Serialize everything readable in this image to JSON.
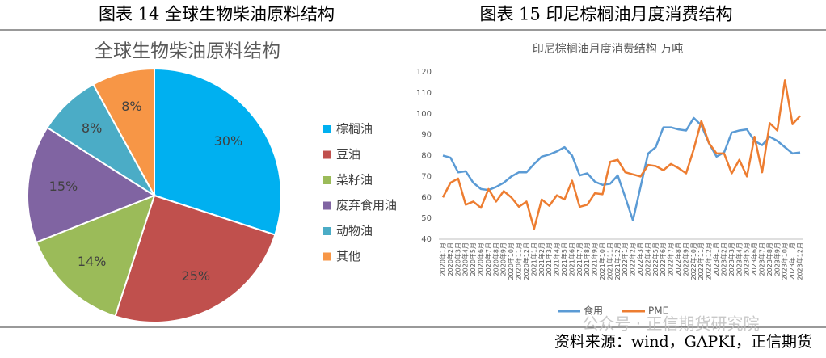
{
  "chart_data": [
    {
      "type": "pie",
      "caption": "图表 14  全球生物柴油原料结构",
      "title": "全球生物柴油原料结构",
      "categories": [
        "棕榈油",
        "豆油",
        "菜籽油",
        "废弃食用油",
        "动物油",
        "其他"
      ],
      "values": [
        30,
        25,
        14,
        15,
        8,
        8
      ],
      "value_labels": [
        "30%",
        "25%",
        "14%",
        "15%",
        "8%",
        "8%"
      ],
      "colors": [
        "#00b0f0",
        "#c0504d",
        "#9bbb59",
        "#8064a2",
        "#4bacc6",
        "#f79646"
      ],
      "legend": "right"
    },
    {
      "type": "line",
      "caption": "图表 15  印尼棕榈油月度消费结构",
      "title": "印尼棕榈油月度消费结构   万吨",
      "categories": [
        "2020年1月",
        "2020年2月",
        "2020年3月",
        "2020年4月",
        "2020年5月",
        "2020年6月",
        "2020年7月",
        "2020年8月",
        "2020年9月",
        "2020年10月",
        "2020年11月",
        "2020年12月",
        "2021年1月",
        "2021年2月",
        "2021年3月",
        "2021年4月",
        "2021年5月",
        "2021年6月",
        "2021年7月",
        "2021年8月",
        "2021年9月",
        "2021年10月",
        "2021年11月",
        "2021年12月",
        "2022年1月",
        "2022年2月",
        "2022年3月",
        "2022年4月",
        "2022年5月",
        "2022年6月",
        "2022年7月",
        "2022年8月",
        "2022年9月",
        "2022年10月",
        "2022年11月",
        "2022年12月",
        "2023年1月",
        "2023年2月",
        "2023年3月",
        "2023年4月",
        "2023年5月",
        "2023年6月",
        "2023年7月",
        "2023年8月",
        "2023年9月",
        "2023年10月",
        "2023年11月",
        "2023年12月"
      ],
      "series": [
        {
          "name": "食用",
          "color": "#5b9bd5",
          "values": [
            80,
            79,
            72,
            72.5,
            67,
            64,
            63.5,
            65,
            67,
            70,
            72,
            72,
            76,
            79.5,
            80.5,
            82,
            84,
            80,
            70.5,
            71.5,
            67.5,
            66,
            66.5,
            70.5,
            60,
            49,
            65,
            81,
            84,
            93.5,
            93.5,
            92.5,
            92,
            98,
            94.5,
            86,
            79.5,
            81.5,
            91,
            92,
            92.5,
            87,
            85,
            89,
            87,
            84,
            81,
            81.5
          ]
        },
        {
          "name": "PME",
          "color": "#ed7d31",
          "values": [
            60,
            67,
            69,
            56.5,
            58,
            55,
            64,
            58,
            63,
            60,
            55.5,
            58,
            45,
            59,
            56,
            61,
            59,
            68,
            55.5,
            56.5,
            62,
            61.5,
            77,
            78,
            72,
            71,
            70,
            75.5,
            75,
            73,
            76,
            74,
            71.5,
            83,
            96.5,
            86,
            81,
            81,
            71.5,
            78,
            70,
            89,
            72,
            95.5,
            92,
            116,
            95,
            99
          ]
        }
      ],
      "ylim": [
        40,
        120
      ],
      "yticks": [
        40,
        50,
        60,
        70,
        80,
        90,
        100,
        110,
        120
      ],
      "grid": false,
      "legend": "bottom"
    }
  ],
  "watermark": "公众号 · 正信期货研究院",
  "source": "资料来源：wind，GAPKI，正信期货"
}
